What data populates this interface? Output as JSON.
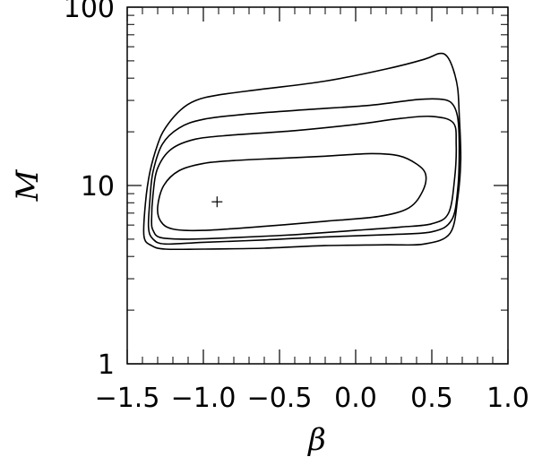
{
  "chart_data": {
    "type": "contour",
    "title": "",
    "xlabel": "β",
    "ylabel": "M",
    "xlim": [
      -1.5,
      1.0
    ],
    "ylim": [
      1,
      100
    ],
    "x_scale": "linear",
    "y_scale": "log",
    "x_ticks": [
      -1.5,
      -1.0,
      -0.5,
      0.0,
      0.5,
      1.0
    ],
    "x_tick_labels": [
      "−1.5",
      "−1.0",
      "−0.5",
      "0.0",
      "0.5",
      "1.0"
    ],
    "y_ticks": [
      1,
      10,
      100
    ],
    "y_tick_labels": [
      "1",
      "10",
      "100"
    ],
    "grid": false,
    "best_fit": {
      "x": -0.91,
      "y": 8.1,
      "marker": "+"
    },
    "contours": [
      {
        "level": 1,
        "points": [
          [
            -1.3,
            7.6
          ],
          [
            -1.26,
            10.0
          ],
          [
            -1.16,
            12.1
          ],
          [
            -1.0,
            13.3
          ],
          [
            -0.8,
            13.8
          ],
          [
            -0.5,
            14.2
          ],
          [
            -0.2,
            14.6
          ],
          [
            0.1,
            15.1
          ],
          [
            0.28,
            14.7
          ],
          [
            0.4,
            13.2
          ],
          [
            0.46,
            11.5
          ],
          [
            0.44,
            9.3
          ],
          [
            0.35,
            7.5
          ],
          [
            0.15,
            6.7
          ],
          [
            -0.2,
            6.3
          ],
          [
            -0.6,
            5.9
          ],
          [
            -1.0,
            5.6
          ],
          [
            -1.2,
            5.7
          ],
          [
            -1.28,
            6.3
          ],
          [
            -1.3,
            7.6
          ]
        ]
      },
      {
        "level": 2,
        "points": [
          [
            -1.34,
            6.4
          ],
          [
            -1.33,
            9.0
          ],
          [
            -1.3,
            12.5
          ],
          [
            -1.21,
            16.0
          ],
          [
            -1.05,
            18.2
          ],
          [
            -0.8,
            19.2
          ],
          [
            -0.4,
            20.3
          ],
          [
            0.0,
            22.0
          ],
          [
            0.3,
            23.8
          ],
          [
            0.5,
            24.4
          ],
          [
            0.64,
            22.5
          ],
          [
            0.66,
            17.0
          ],
          [
            0.65,
            11.0
          ],
          [
            0.61,
            7.0
          ],
          [
            0.5,
            6.1
          ],
          [
            0.3,
            5.85
          ],
          [
            0.0,
            5.6
          ],
          [
            -0.4,
            5.3
          ],
          [
            -0.8,
            5.1
          ],
          [
            -1.1,
            5.0
          ],
          [
            -1.28,
            5.1
          ],
          [
            -1.33,
            5.6
          ],
          [
            -1.34,
            6.4
          ]
        ]
      },
      {
        "level": 3,
        "points": [
          [
            -1.36,
            5.8
          ],
          [
            -1.35,
            8.5
          ],
          [
            -1.33,
            12.0
          ],
          [
            -1.27,
            17.0
          ],
          [
            -1.16,
            21.0
          ],
          [
            -1.0,
            23.5
          ],
          [
            -0.7,
            25.2
          ],
          [
            -0.3,
            26.7
          ],
          [
            0.1,
            28.2
          ],
          [
            0.4,
            30.3
          ],
          [
            0.55,
            30.5
          ],
          [
            0.63,
            29.0
          ],
          [
            0.67,
            24.0
          ],
          [
            0.68,
            16.0
          ],
          [
            0.67,
            9.5
          ],
          [
            0.63,
            6.4
          ],
          [
            0.5,
            5.5
          ],
          [
            0.2,
            5.3
          ],
          [
            -0.2,
            5.15
          ],
          [
            -0.6,
            4.95
          ],
          [
            -1.0,
            4.8
          ],
          [
            -1.25,
            4.7
          ],
          [
            -1.33,
            5.0
          ],
          [
            -1.36,
            5.8
          ]
        ]
      },
      {
        "level": 4,
        "points": [
          [
            -1.39,
            5.2
          ],
          [
            -1.38,
            8.0
          ],
          [
            -1.35,
            12.0
          ],
          [
            -1.3,
            17.0
          ],
          [
            -1.25,
            21.0
          ],
          [
            -1.15,
            26.5
          ],
          [
            -1.05,
            30.0
          ],
          [
            -0.9,
            32.2
          ],
          [
            -0.6,
            34.8
          ],
          [
            -0.2,
            38.5
          ],
          [
            0.2,
            45.0
          ],
          [
            0.45,
            51.0
          ],
          [
            0.55,
            55.0
          ],
          [
            0.6,
            53.0
          ],
          [
            0.64,
            45.0
          ],
          [
            0.67,
            35.0
          ],
          [
            0.68,
            25.0
          ],
          [
            0.69,
            14.0
          ],
          [
            0.67,
            8.5
          ],
          [
            0.62,
            5.4
          ],
          [
            0.45,
            4.7
          ],
          [
            0.2,
            4.65
          ],
          [
            -0.2,
            4.6
          ],
          [
            -0.6,
            4.45
          ],
          [
            -1.0,
            4.4
          ],
          [
            -1.25,
            4.4
          ],
          [
            -1.34,
            4.6
          ],
          [
            -1.39,
            5.2
          ]
        ]
      }
    ]
  }
}
